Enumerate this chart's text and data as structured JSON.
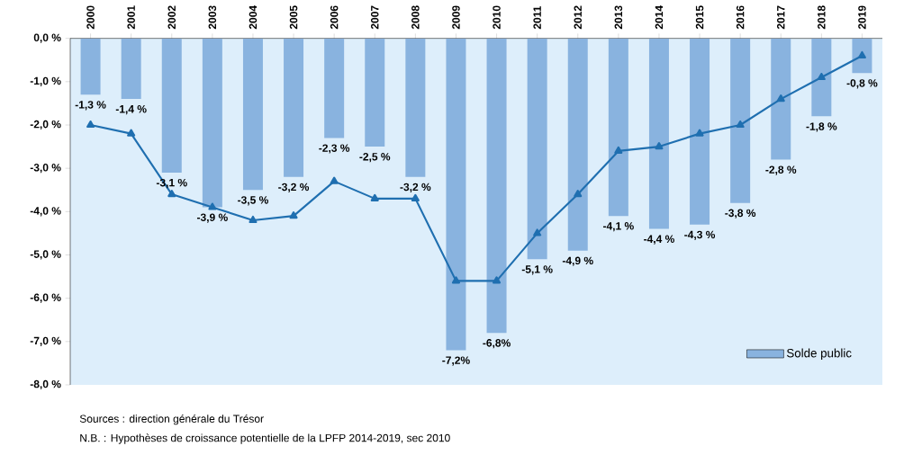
{
  "chart_data": {
    "type": "bar",
    "categories": [
      "2000",
      "2001",
      "2002",
      "2003",
      "2004",
      "2005",
      "2006",
      "2007",
      "2008",
      "2009",
      "2010",
      "2011",
      "2012",
      "2013",
      "2014",
      "2015",
      "2016",
      "2017",
      "2018",
      "2019"
    ],
    "series": [
      {
        "name": "Solde public",
        "color": "#89b3df",
        "values": [
          -1.3,
          -1.4,
          -3.1,
          -3.9,
          -3.5,
          -3.2,
          -2.3,
          -2.5,
          -3.2,
          -7.2,
          -6.8,
          -5.1,
          -4.9,
          -4.1,
          -4.4,
          -4.3,
          -3.8,
          -2.8,
          -1.8,
          -0.8
        ],
        "value_labels": [
          "-1,3 %",
          "-1,4 %",
          "-3,1 %",
          "-3,9 %",
          "-3,5 %",
          "-3,2 %",
          "-2,3 %",
          "-2,5 %",
          "-3,2 %",
          "-7,2%",
          "-6,8%",
          "-5,1 %",
          "-4,9 %",
          "-4,1 %",
          "-4,4 %",
          "-4,3 %",
          "-3,8 %",
          "-2,8 %",
          "-1,8 %",
          "-0,8 %"
        ]
      },
      {
        "type": "line",
        "color": "#1f6fb0",
        "marker": "triangle",
        "values": [
          -2.0,
          -2.2,
          -3.6,
          -3.9,
          -4.2,
          -4.1,
          -3.3,
          -3.7,
          -3.7,
          -5.6,
          -5.6,
          -4.5,
          -3.6,
          -2.6,
          -2.5,
          -2.2,
          -2.0,
          -1.4,
          -0.9,
          -0.4
        ]
      }
    ],
    "ylim": [
      -8,
      0
    ],
    "yticks": [
      {
        "value": 0,
        "label": "0,0 %"
      },
      {
        "value": -1,
        "label": "-1,0 %"
      },
      {
        "value": -2,
        "label": "-2,0 %"
      },
      {
        "value": -3,
        "label": "-3,0 %"
      },
      {
        "value": -4,
        "label": "-4,0 %"
      },
      {
        "value": -5,
        "label": "-5,0 %"
      },
      {
        "value": -6,
        "label": "-6,0 %"
      },
      {
        "value": -7,
        "label": "-7,0 %"
      },
      {
        "value": -8,
        "label": "-8,0 %"
      }
    ],
    "legend": "bottom right",
    "annotations": [
      "Sources : direction générale du Trésor",
      "N.B. : Hypothèses de croissance potentielle de la LPFP 2014-2019, sec 2010"
    ]
  }
}
